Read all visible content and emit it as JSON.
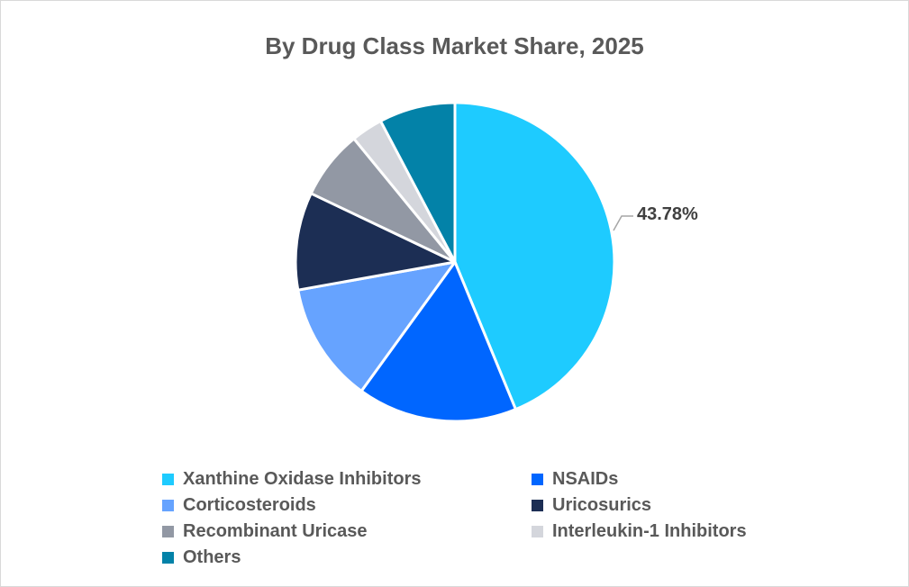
{
  "chart_data": {
    "type": "pie",
    "title": "By Drug Class Market Share, 2025",
    "categories": [
      "Xanthine Oxidase Inhibitors",
      "NSAIDs",
      "Corticosteroids",
      "Uricosurics",
      "Recombinant Uricase",
      "Interleukin-1 Inhibitors",
      "Others"
    ],
    "values": [
      43.78,
      16.2,
      12.2,
      9.9,
      7.0,
      3.2,
      7.72
    ],
    "colors": [
      "#1ECBFF",
      "#0066FF",
      "#66A3FF",
      "#1C2E54",
      "#9298A4",
      "#D4D6DC",
      "#0382A8"
    ],
    "data_labels": [
      {
        "category": "Xanthine Oxidase Inhibitors",
        "text": "43.78%"
      }
    ],
    "legend_position": "bottom",
    "start_angle": 0,
    "direction": "clockwise"
  },
  "title": "By Drug Class Market Share, 2025",
  "data_label": "43.78%",
  "legend": [
    {
      "label": "Xanthine Oxidase Inhibitors",
      "color": "#1ECBFF"
    },
    {
      "label": "NSAIDs",
      "color": "#0066FF"
    },
    {
      "label": "Corticosteroids",
      "color": "#66A3FF"
    },
    {
      "label": "Uricosurics",
      "color": "#1C2E54"
    },
    {
      "label": "Recombinant Uricase",
      "color": "#9298A4"
    },
    {
      "label": "Interleukin-1 Inhibitors",
      "color": "#D4D6DC"
    },
    {
      "label": "Others",
      "color": "#0382A8"
    }
  ]
}
